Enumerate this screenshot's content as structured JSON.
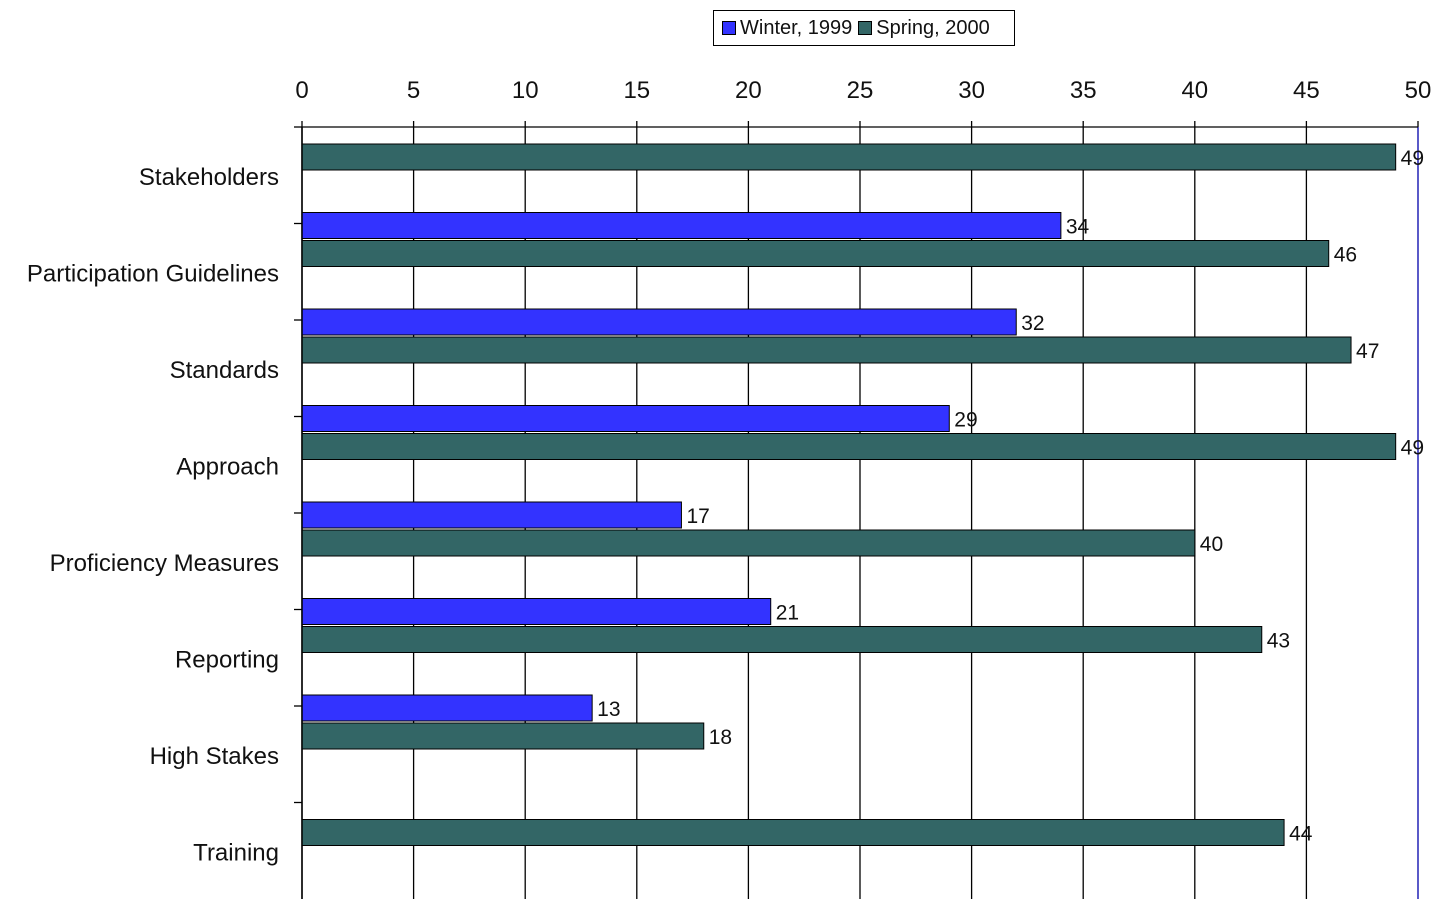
{
  "chart_data": {
    "type": "bar",
    "orientation": "horizontal",
    "categories": [
      "Stakeholders",
      "Participation Guidelines",
      "Standards",
      "Approach",
      "Proficiency Measures",
      "Reporting",
      "High Stakes",
      "Training"
    ],
    "series": [
      {
        "name": "Winter, 1999",
        "color": "#3333ff",
        "values": [
          null,
          34,
          32,
          29,
          17,
          21,
          13,
          null
        ]
      },
      {
        "name": "Spring, 2000",
        "color": "#336666",
        "values": [
          49,
          46,
          47,
          49,
          40,
          43,
          18,
          44
        ]
      }
    ],
    "xlim": [
      0,
      50
    ],
    "xticks": [
      0,
      5,
      10,
      15,
      20,
      25,
      30,
      35,
      40,
      45,
      50
    ],
    "grid": true,
    "legend": "top-center",
    "title": "",
    "xlabel": "",
    "ylabel": ""
  }
}
